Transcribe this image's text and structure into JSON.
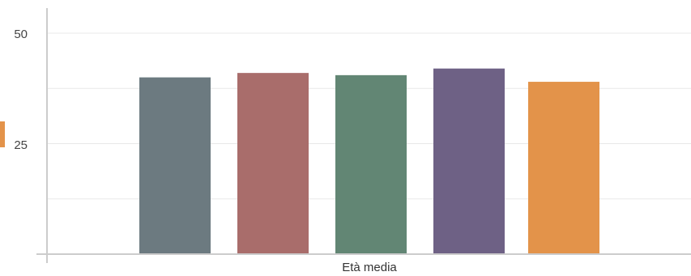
{
  "chart_data": {
    "type": "bar",
    "title": "",
    "xlabel": "Età media",
    "ylabel": "",
    "ylim": [
      0,
      55
    ],
    "yticks": [
      25,
      50
    ],
    "grid": true,
    "legend_marker_color": "#e3934a",
    "series": [
      {
        "value": 40.0,
        "color": "#6c7a80"
      },
      {
        "value": 41.0,
        "color": "#a96d6b"
      },
      {
        "value": 40.5,
        "color": "#628674"
      },
      {
        "value": 42.0,
        "color": "#6e6185"
      },
      {
        "value": 39.0,
        "color": "#e3934a"
      }
    ]
  }
}
